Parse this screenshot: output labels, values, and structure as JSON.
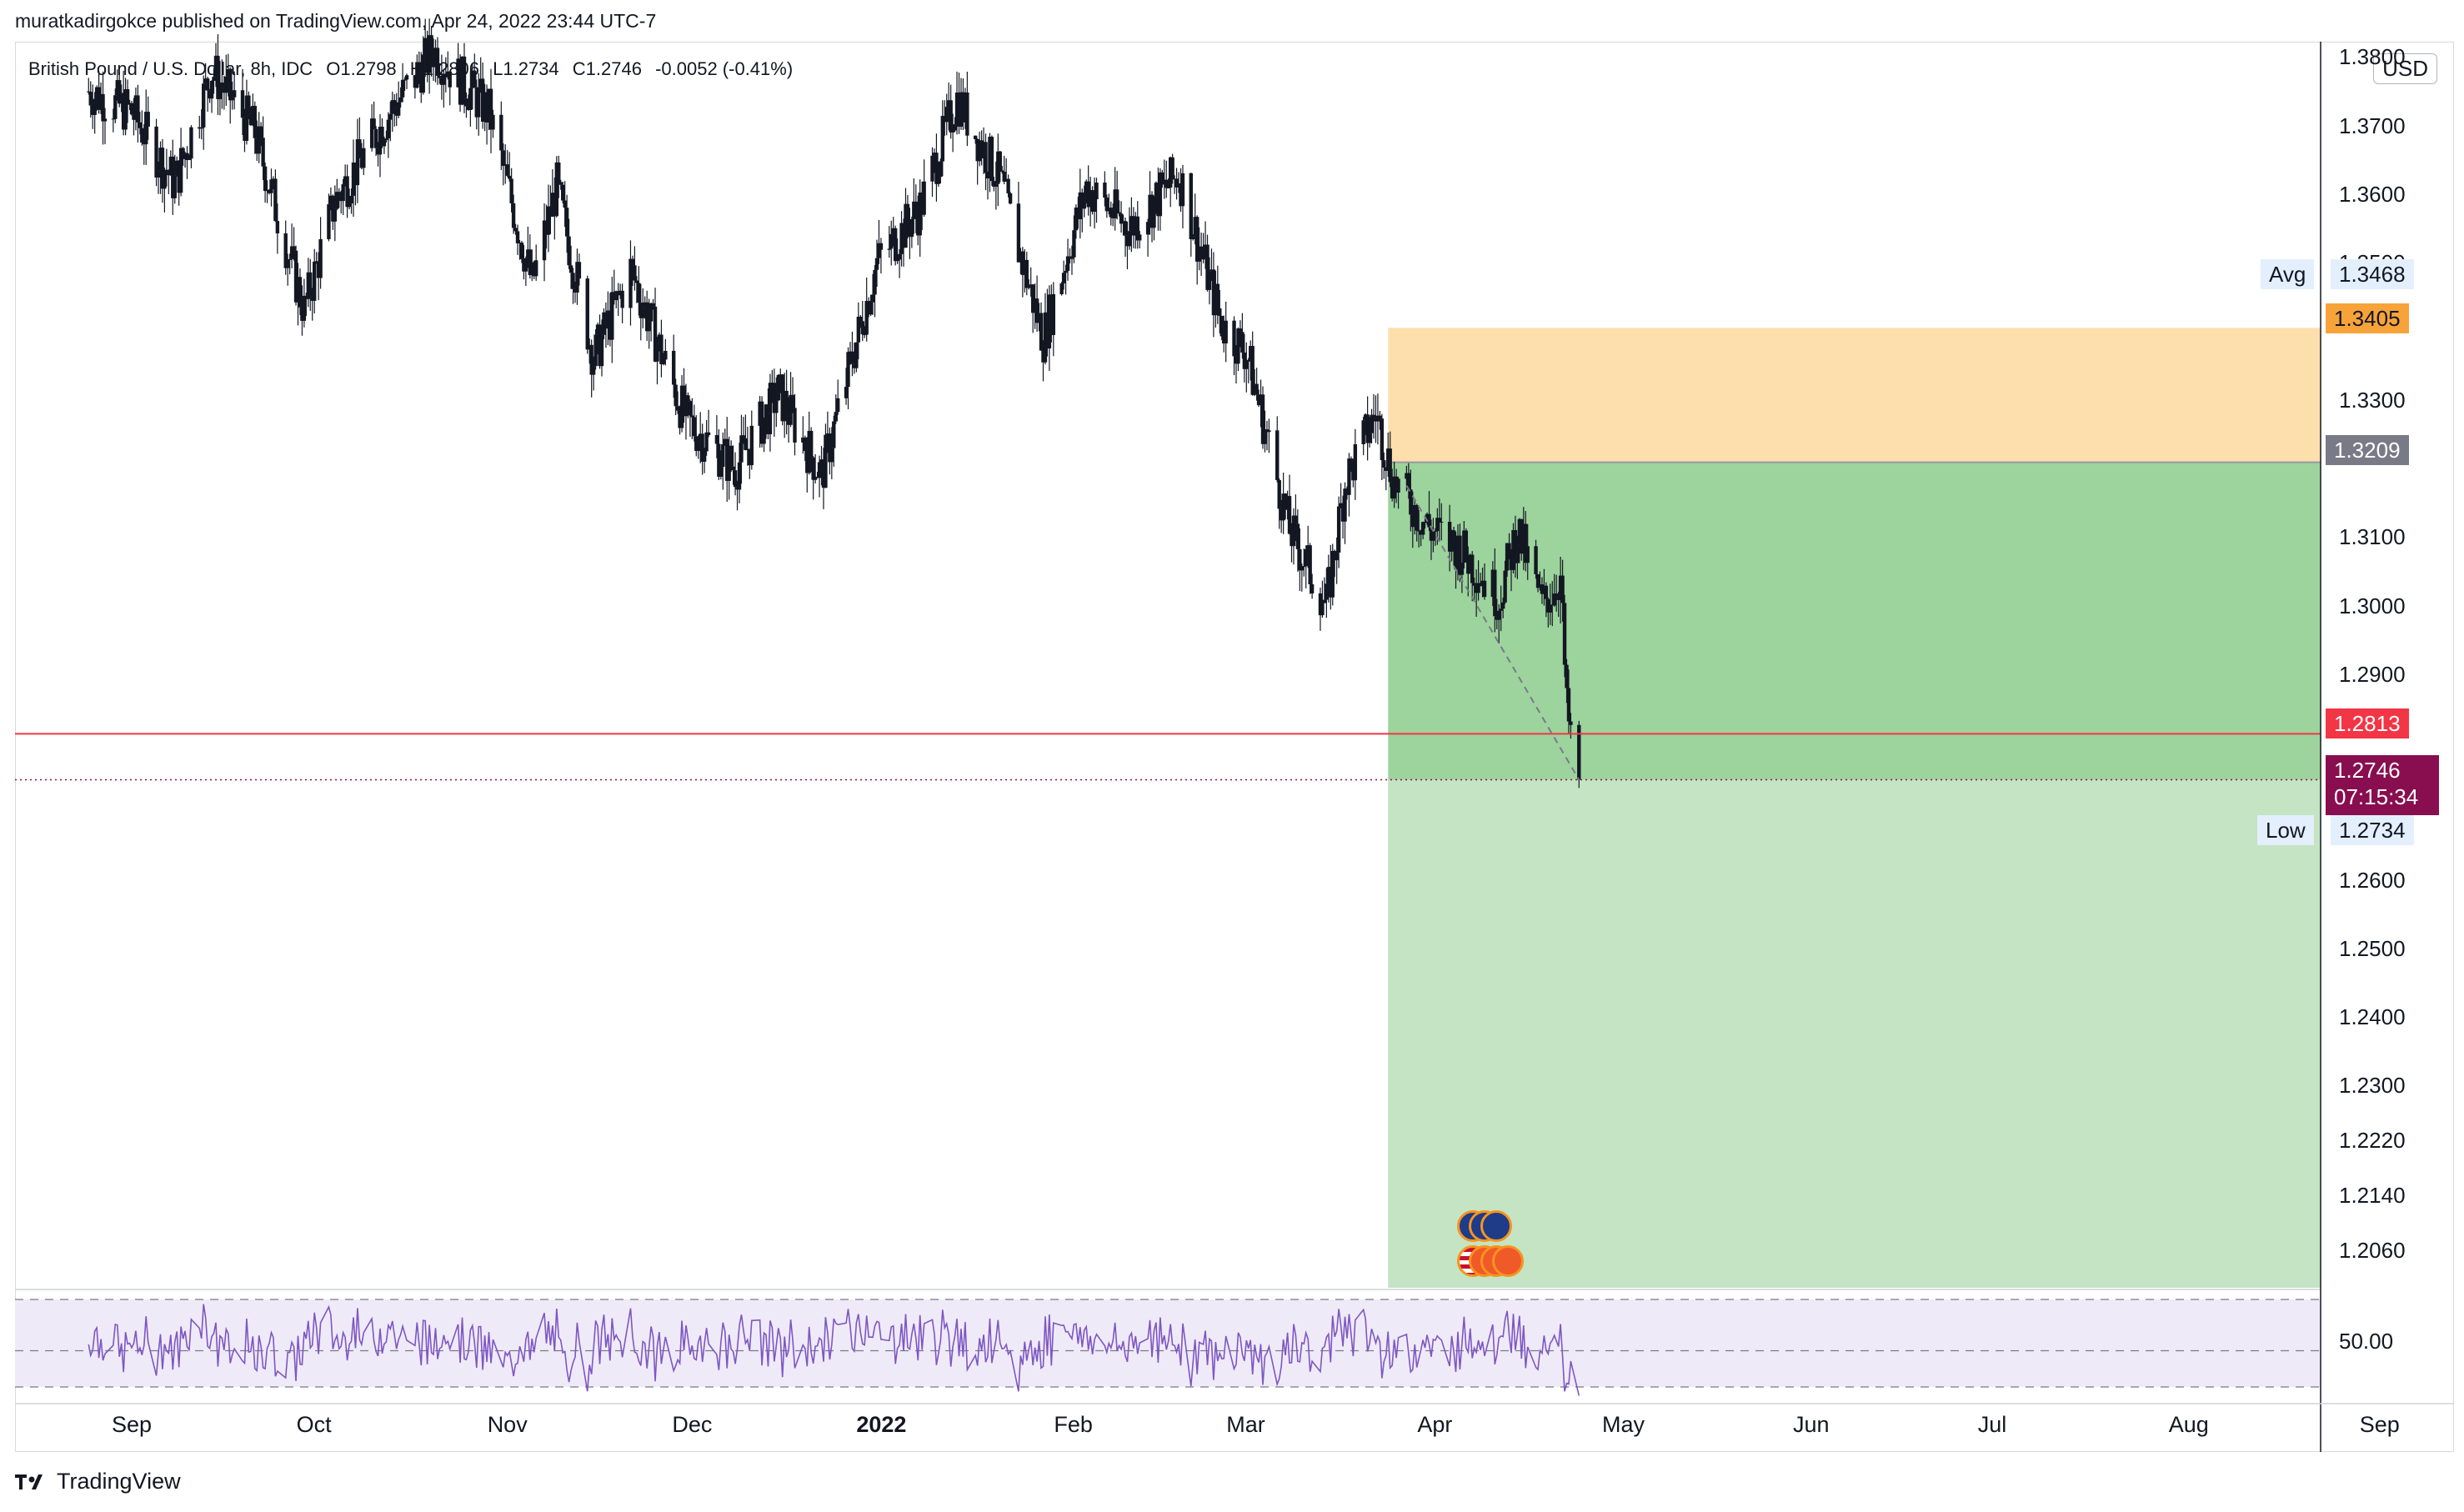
{
  "header": {
    "published_by": "muratkadirgokce published on TradingView.com, Apr 24, 2022 23:44 UTC-7"
  },
  "legend": {
    "symbol": "British Pound / U.S. Dollar, 8h, IDC",
    "open": "O1.2798",
    "high": "H1.2806",
    "low": "L1.2734",
    "close": "C1.2746",
    "change": "-0.0052 (-0.41%)"
  },
  "currency_label": "USD",
  "price_labels": {
    "avg_label": "Avg",
    "avg_value": "1.3468",
    "stop_value": "1.3405",
    "entry_value": "1.3209",
    "line_value": "1.2813",
    "last_value": "1.2746",
    "countdown": "07:15:34",
    "low_label": "Low",
    "low_value": "1.2734"
  },
  "rsi_label": "50.00",
  "brand": "TradingView",
  "colors": {
    "stop_zone": "#fddfad",
    "profit_zone_upper": "#9dd39d",
    "profit_zone_lower": "#c4e4c4",
    "red_line": "#f23645",
    "last_price": "#880e4f",
    "stop_tag": "#f7a33a",
    "entry_tag": "#787b86",
    "rsi_line": "#7e57c2",
    "rsi_band": "#efeaf8"
  },
  "chart_data": {
    "type": "candlestick",
    "symbol": "GBPUSD",
    "interval": "8h",
    "ylim": [
      1.2005,
      1.382
    ],
    "yticks": [
      "1.3800",
      "1.3700",
      "1.3600",
      "1.3500",
      "1.3300",
      "1.3100",
      "1.3000",
      "1.2900",
      "1.2600",
      "1.2500",
      "1.2400",
      "1.2300",
      "1.2220",
      "1.2140",
      "1.2060"
    ],
    "x_months": [
      "Sep",
      "Oct",
      "Nov",
      "Dec",
      "2022",
      "Feb",
      "Mar",
      "Apr",
      "May",
      "Jun",
      "Jul",
      "Aug",
      "Sep"
    ],
    "x_dates": [
      "2021-09-01",
      "2021-10-01",
      "2021-11-01",
      "2021-12-01",
      "2022-01-01",
      "2022-02-01",
      "2022-03-01",
      "2022-04-01",
      "2022-05-01",
      "2022-06-01",
      "2022-07-01",
      "2022-08-01",
      "2022-09-01"
    ],
    "trend_waypoints": [
      {
        "date": "2021-08-25",
        "price": 1.375
      },
      {
        "date": "2021-09-01",
        "price": 1.372
      },
      {
        "date": "2021-09-08",
        "price": 1.3615
      },
      {
        "date": "2021-09-14",
        "price": 1.378
      },
      {
        "date": "2021-09-21",
        "price": 1.369
      },
      {
        "date": "2021-09-29",
        "price": 1.343
      },
      {
        "date": "2021-10-04",
        "price": 1.359
      },
      {
        "date": "2021-10-13",
        "price": 1.372
      },
      {
        "date": "2021-10-20",
        "price": 1.381
      },
      {
        "date": "2021-10-29",
        "price": 1.372
      },
      {
        "date": "2021-11-05",
        "price": 1.347
      },
      {
        "date": "2021-11-09",
        "price": 1.361
      },
      {
        "date": "2021-11-15",
        "price": 1.336
      },
      {
        "date": "2021-11-21",
        "price": 1.349
      },
      {
        "date": "2021-11-30",
        "price": 1.327
      },
      {
        "date": "2021-12-08",
        "price": 1.32
      },
      {
        "date": "2021-12-15",
        "price": 1.331
      },
      {
        "date": "2021-12-22",
        "price": 1.319
      },
      {
        "date": "2021-12-31",
        "price": 1.35
      },
      {
        "date": "2022-01-07",
        "price": 1.358
      },
      {
        "date": "2022-01-13",
        "price": 1.374
      },
      {
        "date": "2022-01-20",
        "price": 1.362
      },
      {
        "date": "2022-01-27",
        "price": 1.339
      },
      {
        "date": "2022-02-03",
        "price": 1.361
      },
      {
        "date": "2022-02-10",
        "price": 1.355
      },
      {
        "date": "2022-02-18",
        "price": 1.363
      },
      {
        "date": "2022-02-25",
        "price": 1.341
      },
      {
        "date": "2022-03-01",
        "price": 1.337
      },
      {
        "date": "2022-03-08",
        "price": 1.311
      },
      {
        "date": "2022-03-14",
        "price": 1.3
      },
      {
        "date": "2022-03-17",
        "price": 1.318
      },
      {
        "date": "2022-03-22",
        "price": 1.328
      },
      {
        "date": "2022-03-25",
        "price": 1.318
      },
      {
        "date": "2022-03-31",
        "price": 1.311
      },
      {
        "date": "2022-04-05",
        "price": 1.308
      },
      {
        "date": "2022-04-11",
        "price": 1.301
      },
      {
        "date": "2022-04-14",
        "price": 1.311
      },
      {
        "date": "2022-04-18",
        "price": 1.3
      },
      {
        "date": "2022-04-21",
        "price": 1.304
      },
      {
        "date": "2022-04-22",
        "price": 1.2846
      },
      {
        "date": "2022-04-24",
        "price": 1.2746
      }
    ],
    "position": {
      "start_date": "2022-03-24",
      "end_date": "2022-09-26",
      "stop_price": 1.3405,
      "entry_price": 1.3209,
      "target_price": 1.2005
    },
    "horizontal_line_price": 1.2813,
    "last_price": 1.2746,
    "low_price": 1.2734,
    "rsi": {
      "level_mid": 50.0,
      "upper_band": 70,
      "lower_band": 30,
      "last_value": 26
    },
    "title": "",
    "xlabel": "",
    "ylabel": ""
  }
}
